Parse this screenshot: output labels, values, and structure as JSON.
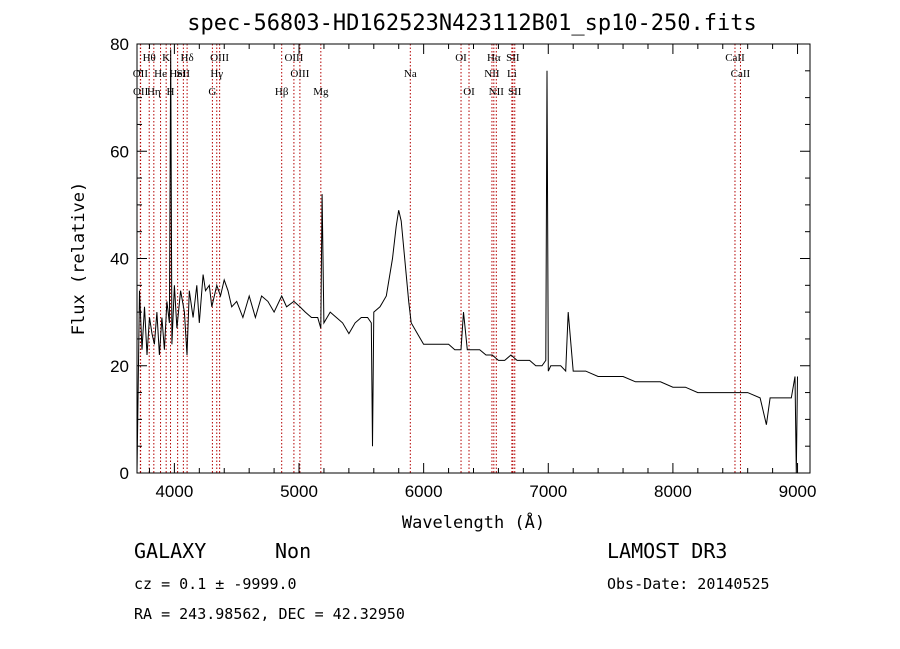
{
  "chart_data": {
    "type": "line",
    "title": "spec-56803-HD162523N423112B01_sp10-250.fits",
    "xlabel": "Wavelength (Å)",
    "ylabel": "Flux (relative)",
    "xlim": [
      3700,
      9100
    ],
    "ylim": [
      0,
      80
    ],
    "x_ticks": [
      4000,
      5000,
      6000,
      7000,
      8000,
      9000
    ],
    "y_ticks": [
      0,
      20,
      40,
      60,
      80
    ],
    "grid": false,
    "line_color": "#000000",
    "marker_color": "#b30000",
    "series": [
      {
        "x": [
          3700,
          3720,
          3740,
          3760,
          3780,
          3800,
          3820,
          3840,
          3860,
          3880,
          3900,
          3920,
          3940,
          3960,
          3970,
          3980,
          4000,
          4020,
          4050,
          4080,
          4101,
          4120,
          4150,
          4180,
          4200,
          4230,
          4250,
          4280,
          4300,
          4340,
          4370,
          4400,
          4430,
          4460,
          4500,
          4550,
          4600,
          4650,
          4700,
          4750,
          4800,
          4861,
          4900,
          4959,
          5007,
          5050,
          5100,
          5150,
          5175,
          5185,
          5200,
          5250,
          5300,
          5350,
          5400,
          5450,
          5500,
          5550,
          5580,
          5590,
          5600,
          5650,
          5700,
          5750,
          5780,
          5800,
          5820,
          5840,
          5860,
          5880,
          5900,
          5950,
          6000,
          6050,
          6100,
          6150,
          6200,
          6250,
          6300,
          6320,
          6350,
          6400,
          6450,
          6500,
          6550,
          6600,
          6650,
          6700,
          6750,
          6800,
          6850,
          6900,
          6950,
          6980,
          6990,
          7000,
          7020,
          7050,
          7100,
          7140,
          7160,
          7200,
          7300,
          7400,
          7500,
          7600,
          7700,
          7800,
          7900,
          8000,
          8100,
          8200,
          8300,
          8400,
          8500,
          8600,
          8700,
          8750,
          8780,
          8800,
          8850,
          8900,
          8950,
          8980,
          8990,
          9000
        ],
        "y": [
          0,
          34,
          23,
          31,
          22,
          29,
          26,
          24,
          30,
          22,
          29,
          23,
          32,
          28,
          79,
          24,
          35,
          27,
          34,
          30,
          22,
          34,
          29,
          35,
          28,
          37,
          34,
          35,
          31,
          35,
          33,
          36,
          34,
          31,
          32,
          29,
          33,
          29,
          33,
          32,
          30,
          33,
          31,
          32,
          31,
          30,
          29,
          29,
          27,
          52,
          28,
          30,
          29,
          28,
          26,
          28,
          29,
          29,
          28,
          5,
          30,
          31,
          33,
          40,
          46,
          49,
          47,
          42,
          37,
          32,
          28,
          26,
          24,
          24,
          24,
          24,
          24,
          23,
          23,
          30,
          23,
          23,
          23,
          22,
          22,
          21,
          21,
          22,
          21,
          21,
          21,
          20,
          20,
          21,
          75,
          19,
          20,
          20,
          20,
          19,
          30,
          19,
          19,
          18,
          18,
          18,
          17,
          17,
          17,
          16,
          16,
          15,
          15,
          15,
          15,
          15,
          14,
          9,
          14,
          14,
          14,
          14,
          14,
          18,
          0,
          18
        ]
      }
    ],
    "line_markers": [
      {
        "label": "Hθ",
        "x": 3798,
        "row": 1
      },
      {
        "label": "OII",
        "x": 3727,
        "row": 2
      },
      {
        "label": "OII",
        "x": 3729,
        "row": 3
      },
      {
        "label": "Hη",
        "x": 3835,
        "row": 3
      },
      {
        "label": "He",
        "x": 3889,
        "row": 2
      },
      {
        "label": "K",
        "x": 3934,
        "row": 1
      },
      {
        "label": "H",
        "x": 3969,
        "row": 3
      },
      {
        "label": "HeI",
        "x": 4026,
        "row": 2
      },
      {
        "label": "SII",
        "x": 4072,
        "row": 2
      },
      {
        "label": "Hδ",
        "x": 4102,
        "row": 1
      },
      {
        "label": "OIII",
        "x": 4363,
        "row": 1
      },
      {
        "label": "Hγ",
        "x": 4340,
        "row": 2
      },
      {
        "label": "G",
        "x": 4305,
        "row": 3
      },
      {
        "label": "Hβ",
        "x": 4861,
        "row": 3
      },
      {
        "label": "OIII",
        "x": 4959,
        "row": 1
      },
      {
        "label": "OIII",
        "x": 5007,
        "row": 2
      },
      {
        "label": "Mg",
        "x": 5175,
        "row": 3
      },
      {
        "label": "Na",
        "x": 5893,
        "row": 2
      },
      {
        "label": "OI",
        "x": 6300,
        "row": 1
      },
      {
        "label": "OI",
        "x": 6364,
        "row": 3
      },
      {
        "label": "Hα",
        "x": 6563,
        "row": 1
      },
      {
        "label": "NII",
        "x": 6548,
        "row": 2
      },
      {
        "label": "NII",
        "x": 6583,
        "row": 3
      },
      {
        "label": "SII",
        "x": 6716,
        "row": 1
      },
      {
        "label": "Li",
        "x": 6708,
        "row": 2
      },
      {
        "label": "SII",
        "x": 6731,
        "row": 3
      },
      {
        "label": "CaII",
        "x": 8498,
        "row": 1
      },
      {
        "label": "CaII",
        "x": 8542,
        "row": 2
      }
    ]
  },
  "info": {
    "class": "GALAXY",
    "subclass": "Non",
    "survey": "LAMOST DR3",
    "cz": "cz = 0.1 ± -9999.0",
    "obs_date": "Obs-Date: 20140525",
    "radec": "RA = 243.98562, DEC =  42.32950"
  }
}
